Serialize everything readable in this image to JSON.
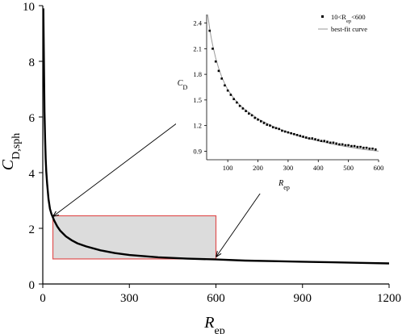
{
  "chart_data": [
    {
      "type": "line",
      "x_label": {
        "base": "R",
        "sub": "ep"
      },
      "y_label": {
        "base": "C",
        "sub": "D,sph"
      },
      "xlim": [
        0,
        1200
      ],
      "ylim": [
        0,
        10
      ],
      "x_ticks": [
        "0",
        "300",
        "600",
        "900",
        "1200"
      ],
      "y_ticks": [
        "0",
        "2",
        "4",
        "6",
        "8",
        "10"
      ],
      "series": [
        {
          "x": [
            2,
            4,
            6,
            8,
            10,
            12,
            15,
            20,
            25,
            30,
            40,
            50,
            60,
            80,
            100,
            120,
            150,
            200,
            250,
            300,
            400,
            500,
            600,
            700,
            800,
            900,
            1000,
            1100,
            1200
          ],
          "y": [
            9.9,
            8.0,
            6.2,
            5.2,
            4.5,
            4.05,
            3.6,
            3.05,
            2.7,
            2.52,
            2.27,
            2.07,
            1.92,
            1.71,
            1.57,
            1.46,
            1.35,
            1.21,
            1.11,
            1.04,
            0.96,
            0.91,
            0.88,
            0.84,
            0.82,
            0.8,
            0.78,
            0.76,
            0.74
          ]
        }
      ],
      "highlight_region": {
        "x": [
          35,
          600
        ],
        "y": [
          0.9,
          2.45
        ]
      }
    },
    {
      "type": "scatter",
      "x_label": {
        "base": "R",
        "sub": "ep"
      },
      "y_label": {
        "base": "C",
        "sub": "D"
      },
      "xlim": [
        30,
        600
      ],
      "ylim": [
        0.8,
        2.5
      ],
      "x_ticks": [
        "100",
        "200",
        "300",
        "400",
        "500",
        "600"
      ],
      "y_ticks": [
        "0.9",
        "1.2",
        "1.5",
        "1.8",
        "2.1",
        "2.4"
      ],
      "legend_position": "top-right",
      "series": [
        {
          "name_base": "10<R",
          "name_sub": "ep",
          "name_tail": "<600",
          "marker": "square",
          "x": [
            40,
            50,
            60,
            70,
            80,
            90,
            100,
            110,
            120,
            130,
            140,
            150,
            160,
            170,
            180,
            190,
            200,
            210,
            220,
            230,
            240,
            250,
            260,
            270,
            280,
            290,
            300,
            310,
            320,
            330,
            340,
            350,
            360,
            370,
            380,
            390,
            400,
            410,
            420,
            430,
            440,
            450,
            460,
            470,
            480,
            490,
            500,
            510,
            520,
            530,
            540,
            550,
            560,
            570,
            580,
            590
          ],
          "y": [
            2.31,
            2.1,
            1.95,
            1.84,
            1.75,
            1.67,
            1.61,
            1.56,
            1.51,
            1.47,
            1.43,
            1.4,
            1.37,
            1.34,
            1.32,
            1.29,
            1.27,
            1.25,
            1.23,
            1.21,
            1.2,
            1.18,
            1.17,
            1.16,
            1.14,
            1.13,
            1.12,
            1.11,
            1.1,
            1.09,
            1.08,
            1.07,
            1.06,
            1.05,
            1.05,
            1.04,
            1.03,
            1.02,
            1.02,
            1.01,
            1.0,
            1.0,
            0.99,
            0.98,
            0.98,
            0.97,
            0.97,
            0.96,
            0.96,
            0.95,
            0.95,
            0.94,
            0.94,
            0.93,
            0.93,
            0.92
          ]
        },
        {
          "name": "best-fit curve",
          "marker": "line",
          "x": [
            33,
            35,
            40,
            45,
            50,
            60,
            70,
            80,
            90,
            100,
            120,
            140,
            160,
            180,
            200,
            250,
            300,
            350,
            400,
            450,
            500,
            550,
            600
          ],
          "y": [
            2.5,
            2.46,
            2.34,
            2.23,
            2.14,
            1.99,
            1.87,
            1.77,
            1.69,
            1.62,
            1.52,
            1.44,
            1.38,
            1.33,
            1.28,
            1.19,
            1.12,
            1.06,
            1.02,
            0.98,
            0.95,
            0.92,
            0.9
          ]
        }
      ]
    }
  ]
}
